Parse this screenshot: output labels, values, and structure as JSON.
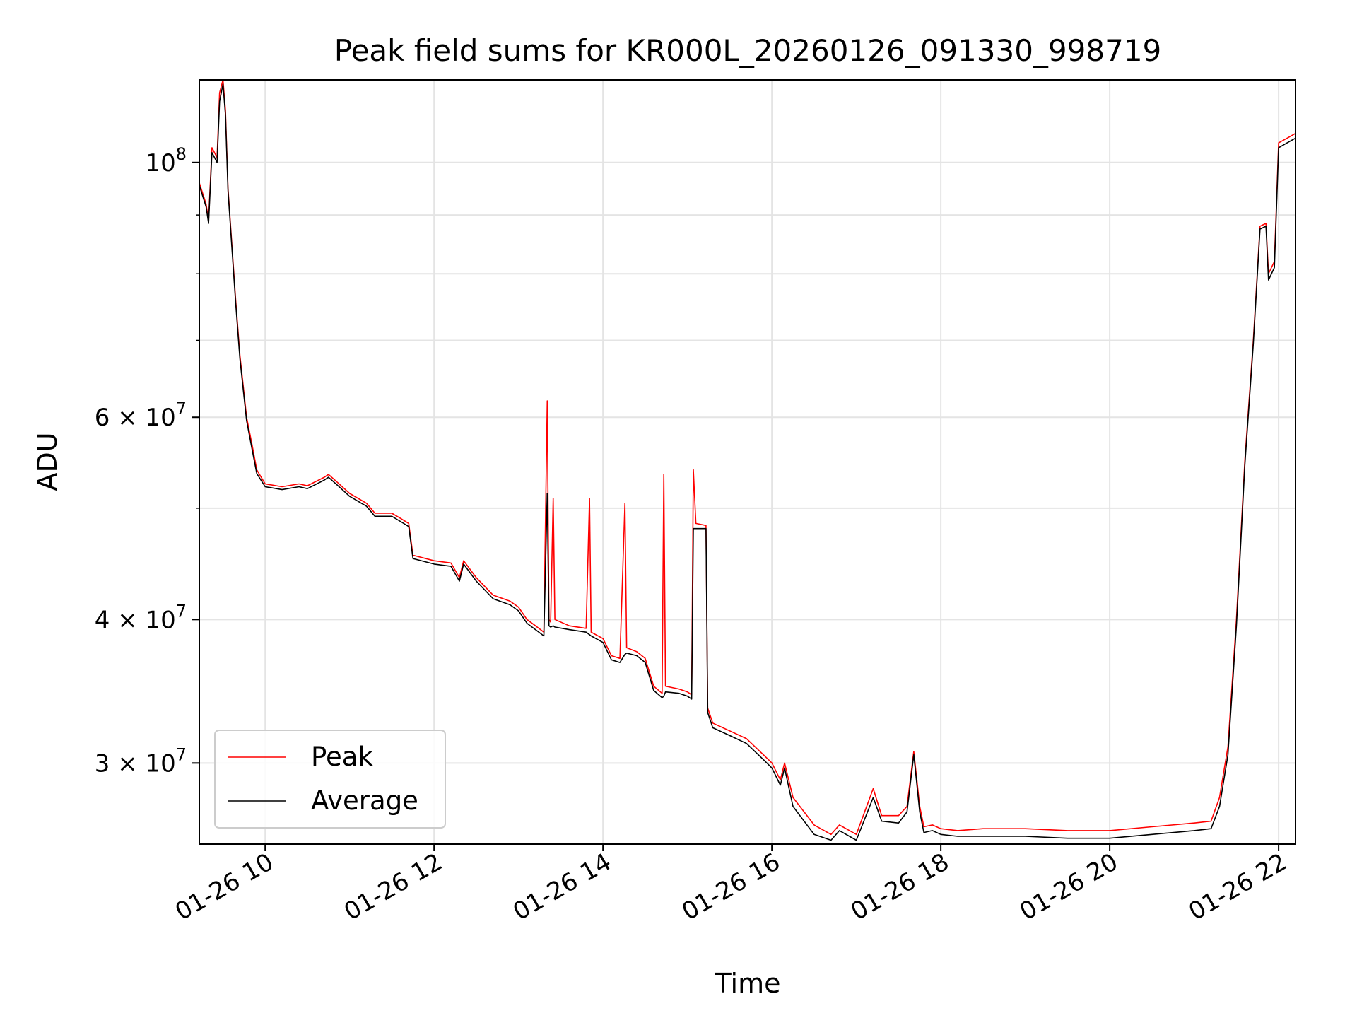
{
  "chart_data": {
    "type": "line",
    "title": "Peak field sums for KR000L_20260126_091330_998719",
    "xlabel": "Time",
    "ylabel": "ADU",
    "yscale": "log",
    "xlim": [
      9.22,
      22.2
    ],
    "ylim": [
      25500000,
      118000000
    ],
    "grid": true,
    "legend_position": "lower-left",
    "x_ticks": [
      {
        "value": 10,
        "label": "01-26 10"
      },
      {
        "value": 12,
        "label": "01-26 12"
      },
      {
        "value": 14,
        "label": "01-26 14"
      },
      {
        "value": 16,
        "label": "01-26 16"
      },
      {
        "value": 18,
        "label": "01-26 18"
      },
      {
        "value": 20,
        "label": "01-26 20"
      },
      {
        "value": 22,
        "label": "01-26 22"
      }
    ],
    "y_major_ticks": [
      {
        "value": 30000000,
        "mant": "3",
        "exp": "7"
      },
      {
        "value": 40000000,
        "mant": "4",
        "exp": "7"
      },
      {
        "value": 60000000,
        "mant": "6",
        "exp": "7"
      },
      {
        "value": 100000000,
        "mant": "",
        "exp": "8"
      }
    ],
    "y_minor_gridlines": [
      50000000,
      70000000,
      80000000,
      90000000
    ],
    "series": [
      {
        "name": "Peak",
        "color": "#ff0000",
        "points": [
          [
            9.22,
            96000000
          ],
          [
            9.3,
            92000000
          ],
          [
            9.33,
            89000000
          ],
          [
            9.37,
            103000000
          ],
          [
            9.43,
            101000000
          ],
          [
            9.46,
            115000000
          ],
          [
            9.5,
            118000000
          ],
          [
            9.53,
            111000000
          ],
          [
            9.56,
            95000000
          ],
          [
            9.6,
            86000000
          ],
          [
            9.65,
            76000000
          ],
          [
            9.7,
            68000000
          ],
          [
            9.78,
            60000000
          ],
          [
            9.85,
            56500000
          ],
          [
            9.9,
            54000000
          ],
          [
            10.0,
            52500000
          ],
          [
            10.2,
            52200000
          ],
          [
            10.4,
            52500000
          ],
          [
            10.5,
            52300000
          ],
          [
            10.7,
            53200000
          ],
          [
            10.75,
            53500000
          ],
          [
            10.85,
            52700000
          ],
          [
            11.0,
            51500000
          ],
          [
            11.2,
            50500000
          ],
          [
            11.3,
            49500000
          ],
          [
            11.5,
            49500000
          ],
          [
            11.6,
            49000000
          ],
          [
            11.7,
            48500000
          ],
          [
            11.75,
            45500000
          ],
          [
            12.0,
            45000000
          ],
          [
            12.2,
            44800000
          ],
          [
            12.3,
            43500000
          ],
          [
            12.35,
            45000000
          ],
          [
            12.5,
            43500000
          ],
          [
            12.7,
            42000000
          ],
          [
            12.9,
            41500000
          ],
          [
            13.0,
            41000000
          ],
          [
            13.1,
            40000000
          ],
          [
            13.2,
            39500000
          ],
          [
            13.3,
            39000000
          ],
          [
            13.34,
            62000000
          ],
          [
            13.36,
            40000000
          ],
          [
            13.38,
            39800000
          ],
          [
            13.41,
            51000000
          ],
          [
            13.43,
            40000000
          ],
          [
            13.6,
            39500000
          ],
          [
            13.8,
            39300000
          ],
          [
            13.84,
            51000000
          ],
          [
            13.86,
            39000000
          ],
          [
            14.0,
            38500000
          ],
          [
            14.1,
            37200000
          ],
          [
            14.2,
            37000000
          ],
          [
            14.26,
            50500000
          ],
          [
            14.28,
            37800000
          ],
          [
            14.4,
            37500000
          ],
          [
            14.5,
            37000000
          ],
          [
            14.6,
            35000000
          ],
          [
            14.7,
            34500000
          ],
          [
            14.72,
            53500000
          ],
          [
            14.74,
            35000000
          ],
          [
            14.9,
            34800000
          ],
          [
            15.0,
            34600000
          ],
          [
            15.05,
            34400000
          ],
          [
            15.07,
            54000000
          ],
          [
            15.1,
            48500000
          ],
          [
            15.22,
            48300000
          ],
          [
            15.24,
            33500000
          ],
          [
            15.3,
            32500000
          ],
          [
            15.5,
            32000000
          ],
          [
            15.7,
            31500000
          ],
          [
            15.9,
            30500000
          ],
          [
            16.0,
            30000000
          ],
          [
            16.1,
            29000000
          ],
          [
            16.15,
            30000000
          ],
          [
            16.25,
            28000000
          ],
          [
            16.5,
            26500000
          ],
          [
            16.7,
            26000000
          ],
          [
            16.8,
            26500000
          ],
          [
            17.0,
            26000000
          ],
          [
            17.2,
            28500000
          ],
          [
            17.3,
            27000000
          ],
          [
            17.5,
            27000000
          ],
          [
            17.6,
            27500000
          ],
          [
            17.68,
            30700000
          ],
          [
            17.75,
            27500000
          ],
          [
            17.8,
            26400000
          ],
          [
            17.9,
            26500000
          ],
          [
            18.0,
            26300000
          ],
          [
            18.2,
            26200000
          ],
          [
            18.5,
            26300000
          ],
          [
            19.0,
            26300000
          ],
          [
            19.5,
            26200000
          ],
          [
            20.0,
            26200000
          ],
          [
            20.5,
            26400000
          ],
          [
            21.0,
            26600000
          ],
          [
            21.2,
            26700000
          ],
          [
            21.3,
            28000000
          ],
          [
            21.4,
            31000000
          ],
          [
            21.5,
            40000000
          ],
          [
            21.6,
            55000000
          ],
          [
            21.7,
            70000000
          ],
          [
            21.78,
            88000000
          ],
          [
            21.85,
            88500000
          ],
          [
            21.88,
            80000000
          ],
          [
            21.95,
            82000000
          ],
          [
            22.0,
            104000000
          ],
          [
            22.1,
            105000000
          ],
          [
            22.2,
            106000000
          ]
        ]
      },
      {
        "name": "Average",
        "color": "#000000",
        "points": [
          [
            9.22,
            95500000
          ],
          [
            9.3,
            91500000
          ],
          [
            9.33,
            88500000
          ],
          [
            9.37,
            102000000
          ],
          [
            9.43,
            100000000
          ],
          [
            9.46,
            113000000
          ],
          [
            9.5,
            117000000
          ],
          [
            9.53,
            110000000
          ],
          [
            9.56,
            94500000
          ],
          [
            9.6,
            85500000
          ],
          [
            9.65,
            75500000
          ],
          [
            9.7,
            67500000
          ],
          [
            9.78,
            59600000
          ],
          [
            9.85,
            56000000
          ],
          [
            9.9,
            53600000
          ],
          [
            10.0,
            52200000
          ],
          [
            10.2,
            51900000
          ],
          [
            10.4,
            52200000
          ],
          [
            10.5,
            52000000
          ],
          [
            10.7,
            52900000
          ],
          [
            10.75,
            53200000
          ],
          [
            10.85,
            52400000
          ],
          [
            11.0,
            51200000
          ],
          [
            11.2,
            50200000
          ],
          [
            11.3,
            49200000
          ],
          [
            11.5,
            49200000
          ],
          [
            11.6,
            48700000
          ],
          [
            11.7,
            48200000
          ],
          [
            11.75,
            45200000
          ],
          [
            12.0,
            44700000
          ],
          [
            12.2,
            44500000
          ],
          [
            12.3,
            43200000
          ],
          [
            12.35,
            44700000
          ],
          [
            12.5,
            43200000
          ],
          [
            12.7,
            41700000
          ],
          [
            12.9,
            41200000
          ],
          [
            13.0,
            40700000
          ],
          [
            13.1,
            39700000
          ],
          [
            13.2,
            39200000
          ],
          [
            13.3,
            38700000
          ],
          [
            13.34,
            51500000
          ],
          [
            13.36,
            39500000
          ],
          [
            13.38,
            39400000
          ],
          [
            13.41,
            39500000
          ],
          [
            13.43,
            39400000
          ],
          [
            13.6,
            39200000
          ],
          [
            13.8,
            39000000
          ],
          [
            13.84,
            38800000
          ],
          [
            13.86,
            38700000
          ],
          [
            14.0,
            38200000
          ],
          [
            14.1,
            36900000
          ],
          [
            14.2,
            36700000
          ],
          [
            14.26,
            37300000
          ],
          [
            14.28,
            37400000
          ],
          [
            14.4,
            37200000
          ],
          [
            14.5,
            36700000
          ],
          [
            14.6,
            34700000
          ],
          [
            14.7,
            34200000
          ],
          [
            14.72,
            34300000
          ],
          [
            14.74,
            34600000
          ],
          [
            14.9,
            34500000
          ],
          [
            15.0,
            34300000
          ],
          [
            15.05,
            34100000
          ],
          [
            15.07,
            48000000
          ],
          [
            15.1,
            48000000
          ],
          [
            15.22,
            48000000
          ],
          [
            15.24,
            33200000
          ],
          [
            15.3,
            32200000
          ],
          [
            15.5,
            31700000
          ],
          [
            15.7,
            31200000
          ],
          [
            15.9,
            30200000
          ],
          [
            16.0,
            29700000
          ],
          [
            16.1,
            28700000
          ],
          [
            16.15,
            29700000
          ],
          [
            16.25,
            27500000
          ],
          [
            16.5,
            26000000
          ],
          [
            16.7,
            25700000
          ],
          [
            16.8,
            26200000
          ],
          [
            17.0,
            25700000
          ],
          [
            17.2,
            28000000
          ],
          [
            17.3,
            26700000
          ],
          [
            17.5,
            26600000
          ],
          [
            17.6,
            27200000
          ],
          [
            17.68,
            30500000
          ],
          [
            17.75,
            27200000
          ],
          [
            17.8,
            26100000
          ],
          [
            17.9,
            26200000
          ],
          [
            18.0,
            26000000
          ],
          [
            18.2,
            25900000
          ],
          [
            18.5,
            25900000
          ],
          [
            19.0,
            25900000
          ],
          [
            19.5,
            25800000
          ],
          [
            20.0,
            25800000
          ],
          [
            20.5,
            26000000
          ],
          [
            21.0,
            26200000
          ],
          [
            21.2,
            26300000
          ],
          [
            21.3,
            27500000
          ],
          [
            21.4,
            30500000
          ],
          [
            21.5,
            39500000
          ],
          [
            21.6,
            54500000
          ],
          [
            21.7,
            69500000
          ],
          [
            21.78,
            87500000
          ],
          [
            21.85,
            88000000
          ],
          [
            21.88,
            79000000
          ],
          [
            21.95,
            81000000
          ],
          [
            22.0,
            103000000
          ],
          [
            22.1,
            104000000
          ],
          [
            22.2,
            105000000
          ]
        ]
      }
    ]
  }
}
